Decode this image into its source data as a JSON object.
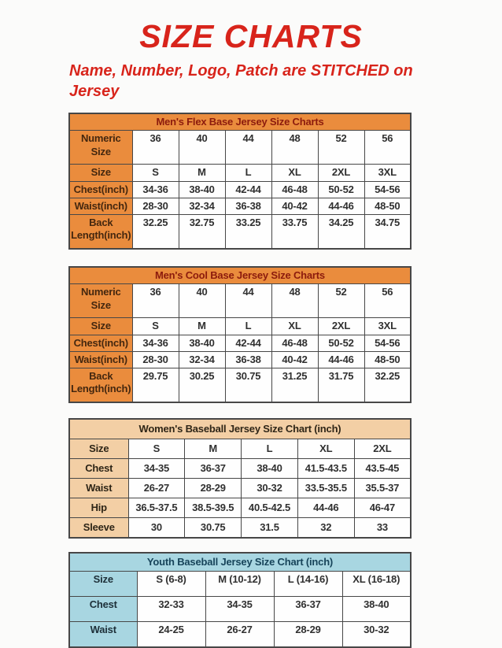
{
  "page": {
    "title": "SIZE CHARTS",
    "subtitle": "Name, Number, Logo, Patch are STITCHED on Jersey"
  },
  "colors": {
    "title_red": "#d8241b",
    "orange_header": "#ea8c3d",
    "orange_title_text": "#8c1b0d",
    "peach_header": "#f3cfa5",
    "blue_header": "#a8d6e1",
    "blue_title_text": "#17445a",
    "body_text": "#303030",
    "border": "#474747"
  },
  "chart_data": [
    {
      "type": "table",
      "title": "Men's Flex Base Jersey Size Charts",
      "rows": [
        [
          "Numeric Size",
          "36",
          "40",
          "44",
          "48",
          "52",
          "56"
        ],
        [
          "Size",
          "S",
          "M",
          "L",
          "XL",
          "2XL",
          "3XL"
        ],
        [
          "Chest(inch)",
          "34-36",
          "38-40",
          "42-44",
          "46-48",
          "50-52",
          "54-56"
        ],
        [
          "Waist(inch)",
          "28-30",
          "32-34",
          "36-38",
          "40-42",
          "44-46",
          "48-50"
        ],
        [
          "Back Length(inch)",
          "32.25",
          "32.75",
          "33.25",
          "33.75",
          "34.25",
          "34.75"
        ]
      ]
    },
    {
      "type": "table",
      "title": "Men's Cool Base Jersey Size Charts",
      "rows": [
        [
          "Numeric Size",
          "36",
          "40",
          "44",
          "48",
          "52",
          "56"
        ],
        [
          "Size",
          "S",
          "M",
          "L",
          "XL",
          "2XL",
          "3XL"
        ],
        [
          "Chest(inch)",
          "34-36",
          "38-40",
          "42-44",
          "46-48",
          "50-52",
          "54-56"
        ],
        [
          "Waist(inch)",
          "28-30",
          "32-34",
          "36-38",
          "40-42",
          "44-46",
          "48-50"
        ],
        [
          "Back Length(inch)",
          "29.75",
          "30.25",
          "30.75",
          "31.25",
          "31.75",
          "32.25"
        ]
      ]
    },
    {
      "type": "table",
      "title": "Women's Baseball Jersey Size Chart (inch)",
      "rows": [
        [
          "Size",
          "S",
          "M",
          "L",
          "XL",
          "2XL"
        ],
        [
          "Chest",
          "34-35",
          "36-37",
          "38-40",
          "41.5-43.5",
          "43.5-45"
        ],
        [
          "Waist",
          "26-27",
          "28-29",
          "30-32",
          "33.5-35.5",
          "35.5-37"
        ],
        [
          "Hip",
          "36.5-37.5",
          "38.5-39.5",
          "40.5-42.5",
          "44-46",
          "46-47"
        ],
        [
          "Sleeve",
          "30",
          "30.75",
          "31.5",
          "32",
          "33"
        ]
      ]
    },
    {
      "type": "table",
      "title": "Youth Baseball Jersey Size Chart (inch)",
      "rows": [
        [
          "Size",
          "S (6-8)",
          "M (10-12)",
          "L (14-16)",
          "XL (16-18)"
        ],
        [
          "Chest",
          "32-33",
          "34-35",
          "36-37",
          "38-40"
        ],
        [
          "Waist",
          "24-25",
          "26-27",
          "28-29",
          "30-32"
        ]
      ]
    }
  ],
  "tables": [
    {
      "id": "mens-flex",
      "theme": "orange",
      "title": "Men's Flex Base Jersey Size Charts",
      "rows": [
        {
          "label": "Numeric Size",
          "tall": true,
          "values": [
            "36",
            "40",
            "44",
            "48",
            "52",
            "56"
          ]
        },
        {
          "label": "Size",
          "tall": false,
          "values": [
            "S",
            "M",
            "L",
            "XL",
            "2XL",
            "3XL"
          ]
        },
        {
          "label": "Chest(inch)",
          "tall": false,
          "values": [
            "34-36",
            "38-40",
            "42-44",
            "46-48",
            "50-52",
            "54-56"
          ]
        },
        {
          "label": "Waist(inch)",
          "tall": false,
          "values": [
            "28-30",
            "32-34",
            "36-38",
            "40-42",
            "44-46",
            "48-50"
          ]
        },
        {
          "label": "Back Length(inch)",
          "tall": true,
          "values": [
            "32.25",
            "32.75",
            "33.25",
            "33.75",
            "34.25",
            "34.75"
          ]
        }
      ]
    },
    {
      "id": "mens-cool",
      "theme": "orange",
      "title": "Men's Cool Base Jersey Size Charts",
      "rows": [
        {
          "label": "Numeric Size",
          "tall": true,
          "values": [
            "36",
            "40",
            "44",
            "48",
            "52",
            "56"
          ]
        },
        {
          "label": "Size",
          "tall": false,
          "values": [
            "S",
            "M",
            "L",
            "XL",
            "2XL",
            "3XL"
          ]
        },
        {
          "label": "Chest(inch)",
          "tall": false,
          "values": [
            "34-36",
            "38-40",
            "42-44",
            "46-48",
            "50-52",
            "54-56"
          ]
        },
        {
          "label": "Waist(inch)",
          "tall": false,
          "values": [
            "28-30",
            "32-34",
            "36-38",
            "40-42",
            "44-46",
            "48-50"
          ]
        },
        {
          "label": "Back Length(inch)",
          "tall": true,
          "values": [
            "29.75",
            "30.25",
            "30.75",
            "31.25",
            "31.75",
            "32.25"
          ]
        }
      ]
    },
    {
      "id": "womens",
      "theme": "peach",
      "title": "Women's Baseball Jersey Size Chart (inch)",
      "rows": [
        {
          "label": "Size",
          "tall": false,
          "values": [
            "S",
            "M",
            "L",
            "XL",
            "2XL"
          ]
        },
        {
          "label": "Chest",
          "tall": false,
          "values": [
            "34-35",
            "36-37",
            "38-40",
            "41.5-43.5",
            "43.5-45"
          ]
        },
        {
          "label": "Waist",
          "tall": false,
          "values": [
            "26-27",
            "28-29",
            "30-32",
            "33.5-35.5",
            "35.5-37"
          ]
        },
        {
          "label": "Hip",
          "tall": false,
          "values": [
            "36.5-37.5",
            "38.5-39.5",
            "40.5-42.5",
            "44-46",
            "46-47"
          ]
        },
        {
          "label": "Sleeve",
          "tall": false,
          "values": [
            "30",
            "30.75",
            "31.5",
            "32",
            "33"
          ]
        }
      ]
    },
    {
      "id": "youth",
      "theme": "blue",
      "title": "Youth Baseball Jersey Size Chart (inch)",
      "rows": [
        {
          "label": "Size",
          "tall": false,
          "values": [
            "S (6-8)",
            "M (10-12)",
            "L (14-16)",
            "XL (16-18)"
          ]
        },
        {
          "label": "Chest",
          "tall": false,
          "values": [
            "32-33",
            "34-35",
            "36-37",
            "38-40"
          ]
        },
        {
          "label": "Waist",
          "tall": false,
          "values": [
            "24-25",
            "26-27",
            "28-29",
            "30-32"
          ]
        }
      ]
    }
  ]
}
